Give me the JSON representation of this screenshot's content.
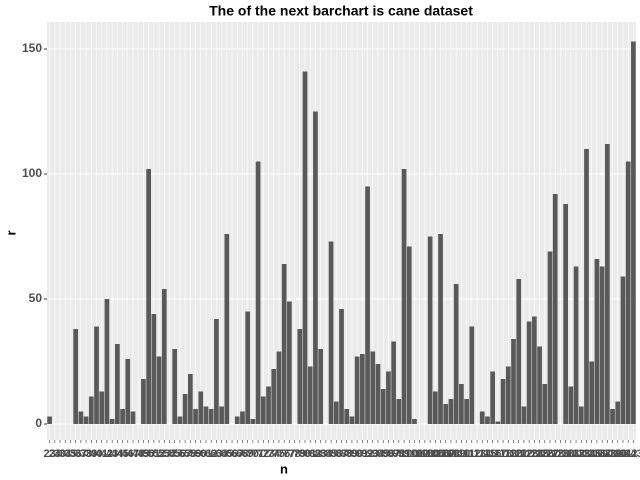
{
  "chart_data": {
    "type": "bar",
    "title": "The of the next barchart is cane dataset",
    "x_label": "n",
    "y_label": "r",
    "categories": [
      23,
      24,
      30,
      34,
      35,
      36,
      37,
      38,
      39,
      40,
      41,
      42,
      43,
      44,
      45,
      46,
      47,
      48,
      49,
      50,
      51,
      52,
      53,
      54,
      55,
      56,
      57,
      58,
      59,
      60,
      61,
      62,
      63,
      64,
      65,
      66,
      67,
      68,
      69,
      70,
      71,
      72,
      73,
      74,
      75,
      76,
      77,
      78,
      79,
      80,
      81,
      82,
      83,
      84,
      85,
      86,
      87,
      88,
      89,
      90,
      91,
      92,
      93,
      94,
      95,
      96,
      97,
      98,
      99,
      100,
      101,
      102,
      103,
      104,
      105,
      106,
      107,
      108,
      109,
      110,
      111,
      112,
      113,
      114,
      115,
      116,
      117,
      118,
      119,
      120,
      121,
      122,
      123,
      124,
      125,
      126,
      127,
      128,
      129,
      130,
      131,
      132,
      133,
      134,
      135,
      136,
      137,
      138,
      139,
      140,
      141,
      142,
      143
    ],
    "values": [
      3,
      0,
      0,
      0,
      0,
      38,
      5,
      3,
      11,
      39,
      13,
      50,
      2,
      32,
      6,
      26,
      5,
      0,
      18,
      102,
      44,
      27,
      54,
      0,
      30,
      3,
      12,
      20,
      6,
      13,
      7,
      6,
      42,
      7,
      76,
      0,
      3,
      5,
      45,
      2,
      105,
      11,
      15,
      22,
      29,
      64,
      49,
      0,
      38,
      141,
      23,
      125,
      30,
      0,
      73,
      9,
      46,
      6,
      3,
      27,
      28,
      95,
      29,
      24,
      14,
      21,
      33,
      10,
      102,
      71,
      2,
      0,
      0,
      75,
      13,
      76,
      8,
      10,
      56,
      16,
      10,
      39,
      0,
      5,
      3,
      21,
      1,
      18,
      23,
      34,
      58,
      7,
      41,
      43,
      31,
      16,
      69,
      92,
      0,
      88,
      15,
      63,
      7,
      110,
      25,
      66,
      63,
      112,
      6,
      9,
      59,
      105,
      153
    ],
    "color": "#595959",
    "ylim": [
      -6.4,
      160.8
    ],
    "yticks": [
      0,
      50,
      100,
      150
    ],
    "grid": true
  }
}
